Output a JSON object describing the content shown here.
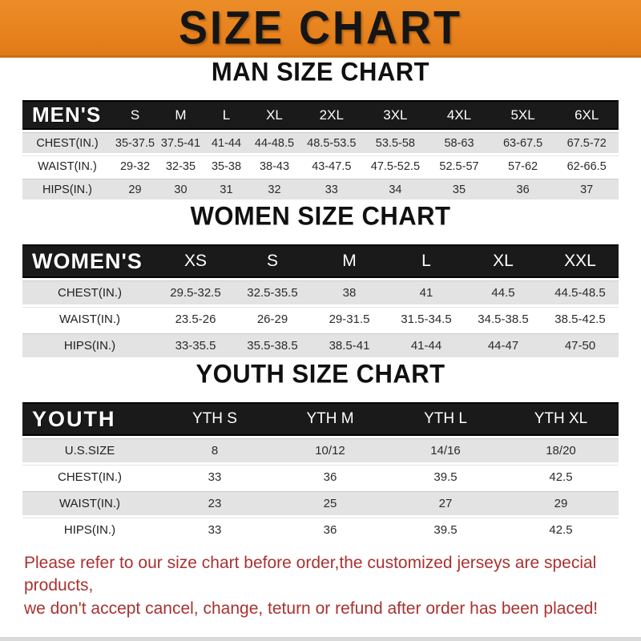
{
  "banner": {
    "title": "SIZE CHART"
  },
  "colors": {
    "accent_orange": "#E8831F",
    "band_black": "#1A1A1A",
    "stripe_gray": "#E3E3E3",
    "warning_red": "#A93230"
  },
  "sections": {
    "man": {
      "heading": "MAN SIZE CHART",
      "table": {
        "header_label": "MEN'S",
        "columns": [
          "S",
          "M",
          "L",
          "XL",
          "2XL",
          "3XL",
          "4XL",
          "5XL",
          "6XL"
        ],
        "rows": [
          {
            "label": "CHEST(IN.)",
            "values": [
              "35-37.5",
              "37.5-41",
              "41-44",
              "44-48.5",
              "48.5-53.5",
              "53.5-58",
              "58-63",
              "63-67.5",
              "67.5-72"
            ]
          },
          {
            "label": "WAIST(IN.)",
            "values": [
              "29-32",
              "32-35",
              "35-38",
              "38-43",
              "43-47.5",
              "47.5-52.5",
              "52.5-57",
              "57-62",
              "62-66.5"
            ]
          },
          {
            "label": "HIPS(IN.)",
            "values": [
              "29",
              "30",
              "31",
              "32",
              "33",
              "34",
              "35",
              "36",
              "37"
            ]
          }
        ]
      }
    },
    "women": {
      "heading": "WOMEN SIZE CHART",
      "table": {
        "header_label": "WOMEN'S",
        "columns": [
          "XS",
          "S",
          "M",
          "L",
          "XL",
          "XXL"
        ],
        "rows": [
          {
            "label": "CHEST(IN.)",
            "values": [
              "29.5-32.5",
              "32.5-35.5",
              "38",
              "41",
              "44.5",
              "44.5-48.5"
            ]
          },
          {
            "label": "WAIST(IN.)",
            "values": [
              "23.5-26",
              "26-29",
              "29-31.5",
              "31.5-34.5",
              "34.5-38.5",
              "38.5-42.5"
            ]
          },
          {
            "label": "HIPS(IN.)",
            "values": [
              "33-35.5",
              "35.5-38.5",
              "38.5-41",
              "41-44",
              "44-47",
              "47-50"
            ]
          }
        ]
      }
    },
    "youth": {
      "heading": "YOUTH SIZE CHART",
      "table": {
        "header_label": "YOUTH",
        "columns": [
          "YTH S",
          "YTH M",
          "YTH L",
          "YTH XL"
        ],
        "rows": [
          {
            "label": "U.S.SIZE",
            "values": [
              "8",
              "10/12",
              "14/16",
              "18/20"
            ]
          },
          {
            "label": "CHEST(IN.)",
            "values": [
              "33",
              "36",
              "39.5",
              "42.5"
            ]
          },
          {
            "label": "WAIST(IN.)",
            "values": [
              "23",
              "25",
              "27",
              "29"
            ]
          },
          {
            "label": "HIPS(IN.)",
            "values": [
              "33",
              "36",
              "39.5",
              "42.5"
            ]
          }
        ]
      }
    }
  },
  "footer": {
    "line1": "Please refer to our size chart before order,the customized jerseys are special products,",
    "line2": "we don't accept cancel, change, teturn or refund after order has been placed!"
  }
}
